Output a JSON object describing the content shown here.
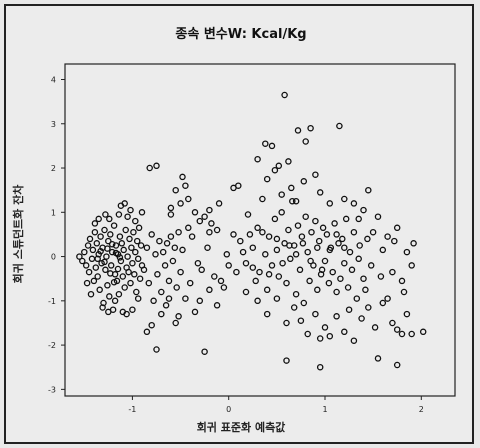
{
  "chart_data": {
    "type": "scatter",
    "title": "종속 변수W: Kcal/Kg",
    "xlabel": "회귀 표준화 예측값",
    "ylabel": "회귀 스튜던트화 잔차",
    "xlim": [
      -1.7,
      2.35
    ],
    "ylim": [
      -3.15,
      4.35
    ],
    "xticks": [
      -1,
      0,
      1,
      2
    ],
    "yticks": [
      4,
      3,
      2,
      1,
      0,
      -1,
      -2,
      -3
    ],
    "grid": false,
    "legend": "none",
    "marker": "open-circle",
    "colors": {
      "marker": "#111111",
      "background": "#ececec",
      "frame": "#222222"
    },
    "points": [
      [
        -1.55,
        0.0
      ],
      [
        -1.52,
        -0.1
      ],
      [
        -1.5,
        0.1
      ],
      [
        -1.48,
        -0.2
      ],
      [
        -1.46,
        0.25
      ],
      [
        -1.45,
        -0.35
      ],
      [
        -1.44,
        0.4
      ],
      [
        -1.42,
        -0.05
      ],
      [
        -1.41,
        0.15
      ],
      [
        -1.4,
        -0.55
      ],
      [
        -1.39,
        0.55
      ],
      [
        -1.38,
        -0.25
      ],
      [
        -1.37,
        0.3
      ],
      [
        -1.36,
        -0.45
      ],
      [
        -1.35,
        0.05
      ],
      [
        -1.34,
        -0.75
      ],
      [
        -1.33,
        0.45
      ],
      [
        -1.32,
        -0.15
      ],
      [
        -1.31,
        0.2
      ],
      [
        -1.3,
        -1.05
      ],
      [
        -1.29,
        0.6
      ],
      [
        -1.28,
        -0.3
      ],
      [
        -1.27,
        0.0
      ],
      [
        -1.26,
        -0.65
      ],
      [
        -1.25,
        0.35
      ],
      [
        -1.24,
        -0.9
      ],
      [
        -1.23,
        0.5
      ],
      [
        -1.22,
        -0.2
      ],
      [
        -1.21,
        0.1
      ],
      [
        -1.2,
        -1.2
      ],
      [
        -1.19,
        0.7
      ],
      [
        -1.18,
        -0.4
      ],
      [
        -1.17,
        0.25
      ],
      [
        -1.16,
        -0.55
      ],
      [
        -1.15,
        0.05
      ],
      [
        -1.14,
        -0.85
      ],
      [
        -1.13,
        0.45
      ],
      [
        -1.12,
        -0.1
      ],
      [
        -1.11,
        0.3
      ],
      [
        -1.1,
        -0.45
      ],
      [
        -1.09,
        0.15
      ],
      [
        -1.08,
        -0.7
      ],
      [
        -1.07,
        0.6
      ],
      [
        -1.06,
        -0.25
      ],
      [
        -1.05,
        0.0
      ],
      [
        -1.04,
        -0.35
      ],
      [
        -1.03,
        0.4
      ],
      [
        -1.02,
        -0.6
      ],
      [
        -1.01,
        0.2
      ],
      [
        -1.0,
        -0.15
      ],
      [
        -0.99,
        0.55
      ],
      [
        -0.98,
        -0.4
      ],
      [
        -0.97,
        0.1
      ],
      [
        -0.96,
        -0.8
      ],
      [
        -0.95,
        0.35
      ],
      [
        -0.94,
        -0.05
      ],
      [
        -0.93,
        0.65
      ],
      [
        -0.92,
        -0.5
      ],
      [
        -0.91,
        0.25
      ],
      [
        -0.9,
        -0.2
      ],
      [
        -1.36,
        -0.05
      ],
      [
        -1.33,
        0.12
      ],
      [
        -1.29,
        -0.12
      ],
      [
        -1.26,
        0.18
      ],
      [
        -1.23,
        -0.38
      ],
      [
        -1.21,
        0.28
      ],
      [
        -1.19,
        -0.58
      ],
      [
        -1.17,
        0.08
      ],
      [
        -1.15,
        -0.28
      ],
      [
        -1.13,
        -0.02
      ],
      [
        -1.47,
        -0.6
      ],
      [
        -1.43,
        -0.85
      ],
      [
        -1.39,
        0.75
      ],
      [
        -1.35,
        0.85
      ],
      [
        -1.31,
        -1.15
      ],
      [
        -1.28,
        0.95
      ],
      [
        -1.24,
        0.85
      ],
      [
        -1.18,
        -1.0
      ],
      [
        -1.14,
        0.95
      ],
      [
        -1.1,
        -1.25
      ],
      [
        -1.12,
        1.15
      ],
      [
        -1.08,
        1.2
      ],
      [
        -1.05,
        0.9
      ],
      [
        -1.02,
        1.05
      ],
      [
        -1.0,
        -1.2
      ],
      [
        -0.97,
        0.8
      ],
      [
        -0.94,
        -0.95
      ],
      [
        -0.9,
        1.0
      ],
      [
        -1.06,
        -1.3
      ],
      [
        -1.25,
        -1.25
      ],
      [
        -0.88,
        -0.3
      ],
      [
        -0.85,
        0.2
      ],
      [
        -0.83,
        -0.6
      ],
      [
        -0.8,
        0.5
      ],
      [
        -0.78,
        -1.0
      ],
      [
        -0.76,
        0.05
      ],
      [
        -0.74,
        -0.4
      ],
      [
        -0.72,
        0.35
      ],
      [
        -0.7,
        -0.8
      ],
      [
        -0.68,
        0.1
      ],
      [
        -0.66,
        -0.2
      ],
      [
        -0.64,
        0.3
      ],
      [
        -0.62,
        -0.55
      ],
      [
        -0.6,
        0.45
      ],
      [
        -0.58,
        -0.1
      ],
      [
        -0.56,
        0.2
      ],
      [
        -0.54,
        -0.7
      ],
      [
        -0.52,
        0.55
      ],
      [
        -0.5,
        -0.35
      ],
      [
        -0.48,
        0.15
      ],
      [
        -0.85,
        -1.7
      ],
      [
        -0.8,
        -1.55
      ],
      [
        -0.75,
        -2.1
      ],
      [
        -0.7,
        -1.3
      ],
      [
        -0.65,
        -1.1
      ],
      [
        -0.55,
        -1.5
      ],
      [
        -0.45,
        -0.95
      ],
      [
        -0.35,
        -1.25
      ],
      [
        -0.25,
        -2.15
      ],
      [
        -0.2,
        -0.75
      ],
      [
        -0.82,
        2.0
      ],
      [
        -0.75,
        2.05
      ],
      [
        -0.6,
        1.1
      ],
      [
        -0.55,
        1.5
      ],
      [
        -0.48,
        1.8
      ],
      [
        -0.42,
        1.3
      ],
      [
        -0.35,
        1.0
      ],
      [
        -0.3,
        0.8
      ],
      [
        -0.25,
        0.9
      ],
      [
        -0.2,
        0.55
      ],
      [
        -0.45,
        1.6
      ],
      [
        -0.38,
        0.45
      ],
      [
        -0.32,
        -0.15
      ],
      [
        -0.28,
        -0.3
      ],
      [
        -0.22,
        0.2
      ],
      [
        -0.18,
        0.75
      ],
      [
        -0.12,
        0.6
      ],
      [
        -0.08,
        -0.55
      ],
      [
        -0.05,
        -0.7
      ],
      [
        -0.15,
        -0.45
      ],
      [
        -0.6,
        0.95
      ],
      [
        -0.5,
        1.2
      ],
      [
        -0.42,
        0.65
      ],
      [
        -0.62,
        -0.95
      ],
      [
        -0.52,
        -1.35
      ],
      [
        -0.4,
        -0.6
      ],
      [
        -0.3,
        -1.0
      ],
      [
        -0.2,
        1.05
      ],
      [
        -0.12,
        -1.1
      ],
      [
        -0.1,
        1.2
      ],
      [
        0.05,
        1.55
      ],
      [
        0.1,
        1.6
      ],
      [
        0.12,
        0.35
      ],
      [
        0.18,
        -0.15
      ],
      [
        0.2,
        0.95
      ],
      [
        0.25,
        0.2
      ],
      [
        0.28,
        -0.55
      ],
      [
        0.3,
        0.65
      ],
      [
        0.32,
        -0.35
      ],
      [
        0.35,
        1.3
      ],
      [
        0.38,
        0.05
      ],
      [
        0.4,
        -0.75
      ],
      [
        0.42,
        0.45
      ],
      [
        0.45,
        -0.2
      ],
      [
        0.48,
        0.85
      ],
      [
        0.5,
        0.15
      ],
      [
        0.52,
        -0.45
      ],
      [
        0.55,
        1.0
      ],
      [
        0.58,
        0.3
      ],
      [
        0.6,
        -0.6
      ],
      [
        0.62,
        0.6
      ],
      [
        0.64,
        -0.05
      ],
      [
        0.66,
        1.25
      ],
      [
        0.68,
        0.25
      ],
      [
        0.7,
        -0.85
      ],
      [
        0.72,
        0.7
      ],
      [
        0.74,
        -0.3
      ],
      [
        0.76,
        0.45
      ],
      [
        0.78,
        -1.05
      ],
      [
        0.8,
        0.9
      ],
      [
        0.82,
        0.1
      ],
      [
        0.84,
        -0.55
      ],
      [
        0.86,
        0.55
      ],
      [
        0.88,
        -0.2
      ],
      [
        0.9,
        0.8
      ],
      [
        0.92,
        -0.75
      ],
      [
        0.94,
        0.35
      ],
      [
        0.96,
        -0.4
      ],
      [
        0.98,
        0.65
      ],
      [
        1.0,
        -0.1
      ],
      [
        1.02,
        0.5
      ],
      [
        1.04,
        -0.6
      ],
      [
        1.06,
        0.2
      ],
      [
        1.08,
        -0.35
      ],
      [
        1.1,
        0.75
      ],
      [
        1.12,
        -0.8
      ],
      [
        1.14,
        0.3
      ],
      [
        1.16,
        -0.5
      ],
      [
        1.18,
        0.4
      ],
      [
        1.2,
        -0.15
      ],
      [
        1.22,
        0.85
      ],
      [
        1.24,
        -0.7
      ],
      [
        1.26,
        0.1
      ],
      [
        1.28,
        -0.3
      ],
      [
        1.3,
        0.55
      ],
      [
        1.33,
        -0.95
      ],
      [
        1.36,
        0.25
      ],
      [
        1.4,
        -0.5
      ],
      [
        1.44,
        0.4
      ],
      [
        1.48,
        -0.2
      ],
      [
        0.3,
        2.2
      ],
      [
        0.38,
        2.55
      ],
      [
        0.45,
        2.5
      ],
      [
        0.52,
        2.05
      ],
      [
        0.58,
        3.65
      ],
      [
        0.65,
        1.55
      ],
      [
        0.72,
        2.85
      ],
      [
        0.8,
        2.6
      ],
      [
        0.85,
        2.9
      ],
      [
        0.9,
        1.85
      ],
      [
        0.4,
        1.75
      ],
      [
        0.48,
        1.95
      ],
      [
        0.55,
        1.4
      ],
      [
        0.62,
        2.15
      ],
      [
        0.7,
        1.25
      ],
      [
        0.78,
        1.7
      ],
      [
        0.95,
        1.45
      ],
      [
        1.05,
        1.2
      ],
      [
        1.15,
        2.95
      ],
      [
        1.2,
        1.3
      ],
      [
        0.3,
        -1.0
      ],
      [
        0.4,
        -1.3
      ],
      [
        0.5,
        -0.95
      ],
      [
        0.6,
        -1.5
      ],
      [
        0.68,
        -1.15
      ],
      [
        0.75,
        -1.45
      ],
      [
        0.82,
        -1.75
      ],
      [
        0.9,
        -1.3
      ],
      [
        0.95,
        -1.85
      ],
      [
        1.0,
        -1.6
      ],
      [
        1.05,
        -1.8
      ],
      [
        1.12,
        -1.35
      ],
      [
        1.2,
        -1.7
      ],
      [
        1.25,
        -1.2
      ],
      [
        1.3,
        -1.9
      ],
      [
        1.38,
        -1.4
      ],
      [
        1.45,
        -1.15
      ],
      [
        1.52,
        -1.6
      ],
      [
        1.6,
        -1.05
      ],
      [
        1.7,
        -1.5
      ],
      [
        1.75,
        -1.65
      ],
      [
        1.8,
        -1.75
      ],
      [
        1.85,
        -1.3
      ],
      [
        1.9,
        -1.75
      ],
      [
        2.02,
        -1.7
      ],
      [
        1.55,
        -2.3
      ],
      [
        1.75,
        -2.45
      ],
      [
        0.95,
        -2.5
      ],
      [
        0.6,
        -2.35
      ],
      [
        0.18,
        -0.8
      ],
      [
        1.3,
        1.2
      ],
      [
        1.35,
        0.85
      ],
      [
        1.4,
        1.05
      ],
      [
        1.5,
        0.55
      ],
      [
        1.55,
        0.9
      ],
      [
        1.6,
        0.15
      ],
      [
        1.65,
        0.45
      ],
      [
        1.7,
        -0.35
      ],
      [
        1.75,
        0.65
      ],
      [
        1.8,
        -0.55
      ],
      [
        1.85,
        0.1
      ],
      [
        1.9,
        -0.2
      ],
      [
        1.92,
        0.3
      ],
      [
        1.82,
        -0.8
      ],
      [
        1.45,
        1.5
      ],
      [
        1.35,
        -0.05
      ],
      [
        1.42,
        -0.75
      ],
      [
        1.58,
        -0.45
      ],
      [
        1.65,
        -0.95
      ],
      [
        1.72,
        0.35
      ],
      [
        0.0,
        -0.2
      ],
      [
        0.05,
        0.5
      ],
      [
        -0.02,
        0.05
      ],
      [
        0.08,
        -0.35
      ],
      [
        0.15,
        0.1
      ],
      [
        0.22,
        0.5
      ],
      [
        0.25,
        -0.25
      ],
      [
        0.35,
        0.55
      ],
      [
        0.42,
        -0.4
      ],
      [
        0.5,
        0.4
      ],
      [
        0.56,
        -0.15
      ],
      [
        0.63,
        0.25
      ],
      [
        0.7,
        0.05
      ],
      [
        0.77,
        0.3
      ],
      [
        0.85,
        -0.1
      ],
      [
        0.92,
        0.2
      ],
      [
        0.97,
        -0.3
      ],
      [
        1.05,
        0.15
      ],
      [
        1.12,
        0.5
      ],
      [
        1.2,
        0.2
      ]
    ]
  }
}
